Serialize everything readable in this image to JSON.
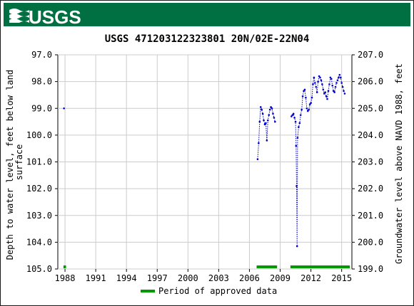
{
  "header": {
    "logo_text": "USGS"
  },
  "chart_data": {
    "type": "scatter",
    "title": "USGS 471203122323801 20N/02E-22N04",
    "ylabel_left": "Depth to water level, feet below land surface",
    "ylabel_right": "Groundwater level above NAVD 1988, feet",
    "ylim_left": [
      105.0,
      97.0
    ],
    "ylim_right": [
      199.0,
      207.0
    ],
    "xlim": [
      1987.3,
      2016.0
    ],
    "x_ticks": [
      "1988",
      "1991",
      "1994",
      "1997",
      "2000",
      "2003",
      "2006",
      "2009",
      "2012",
      "2015"
    ],
    "x_tick_values": [
      1988,
      1991,
      1994,
      1997,
      2000,
      2003,
      2006,
      2009,
      2012,
      2015
    ],
    "y_ticks_left": [
      "97.0",
      "98.0",
      "99.0",
      "100.0",
      "101.0",
      "102.0",
      "103.0",
      "104.0",
      "105.0"
    ],
    "y_tick_values_left": [
      97,
      98,
      99,
      100,
      101,
      102,
      103,
      104,
      105
    ],
    "y_ticks_right": [
      "207.0",
      "206.0",
      "205.0",
      "204.0",
      "203.0",
      "202.0",
      "201.0",
      "200.0",
      "199.0"
    ],
    "grid": true,
    "legend_position": "bottom-center",
    "legend": [
      {
        "label": "Period of approved data",
        "color": "#009900"
      }
    ],
    "series": [
      {
        "color": "#0000cc",
        "points": [
          [
            1987.9,
            99.0
          ]
        ]
      },
      {
        "color": "#0000cc",
        "points": [
          [
            2006.8,
            100.9
          ],
          [
            2006.9,
            100.3
          ],
          [
            2007.0,
            99.5
          ],
          [
            2007.1,
            98.95
          ],
          [
            2007.2,
            99.05
          ],
          [
            2007.3,
            99.2
          ],
          [
            2007.4,
            99.45
          ],
          [
            2007.5,
            99.6
          ],
          [
            2007.6,
            99.55
          ],
          [
            2007.7,
            100.2
          ],
          [
            2007.8,
            99.45
          ],
          [
            2007.9,
            99.25
          ],
          [
            2008.0,
            99.05
          ],
          [
            2008.1,
            98.95
          ],
          [
            2008.2,
            99.0
          ],
          [
            2008.3,
            99.2
          ],
          [
            2008.4,
            99.35
          ],
          [
            2008.5,
            99.5
          ]
        ]
      },
      {
        "color": "#0000cc",
        "points": [
          [
            2010.1,
            99.3
          ],
          [
            2010.2,
            99.25
          ],
          [
            2010.3,
            99.2
          ],
          [
            2010.4,
            99.35
          ],
          [
            2010.5,
            99.5
          ],
          [
            2010.55,
            100.4
          ],
          [
            2010.6,
            101.9
          ],
          [
            2010.65,
            104.15
          ],
          [
            2010.7,
            100.1
          ],
          [
            2010.8,
            99.7
          ],
          [
            2010.9,
            99.55
          ],
          [
            2011.0,
            99.25
          ],
          [
            2011.1,
            99.05
          ],
          [
            2011.2,
            98.55
          ],
          [
            2011.3,
            98.35
          ],
          [
            2011.4,
            98.3
          ],
          [
            2011.5,
            98.6
          ],
          [
            2011.6,
            99.0
          ],
          [
            2011.7,
            99.1
          ],
          [
            2011.8,
            99.05
          ],
          [
            2011.9,
            98.85
          ],
          [
            2012.0,
            98.8
          ],
          [
            2012.1,
            98.6
          ],
          [
            2012.2,
            98.1
          ],
          [
            2012.3,
            97.85
          ],
          [
            2012.4,
            98.05
          ],
          [
            2012.5,
            98.2
          ],
          [
            2012.6,
            98.4
          ],
          [
            2012.7,
            98.0
          ],
          [
            2012.8,
            97.8
          ],
          [
            2012.9,
            97.85
          ],
          [
            2013.0,
            97.95
          ],
          [
            2013.1,
            98.1
          ],
          [
            2013.2,
            98.3
          ],
          [
            2013.3,
            98.45
          ],
          [
            2013.4,
            98.4
          ],
          [
            2013.5,
            98.55
          ],
          [
            2013.6,
            98.65
          ],
          [
            2013.7,
            98.35
          ],
          [
            2013.8,
            98.1
          ],
          [
            2013.9,
            97.85
          ],
          [
            2014.0,
            97.9
          ],
          [
            2014.1,
            98.15
          ],
          [
            2014.2,
            98.35
          ],
          [
            2014.3,
            98.4
          ],
          [
            2014.4,
            98.2
          ],
          [
            2014.5,
            98.05
          ],
          [
            2014.6,
            97.95
          ],
          [
            2014.7,
            97.85
          ],
          [
            2014.8,
            97.75
          ],
          [
            2014.9,
            97.85
          ],
          [
            2015.0,
            98.05
          ],
          [
            2015.1,
            98.2
          ],
          [
            2015.2,
            98.35
          ],
          [
            2015.3,
            98.45
          ]
        ]
      }
    ],
    "approved_periods": [
      [
        1987.85,
        1988.1
      ],
      [
        2006.7,
        2008.7
      ],
      [
        2010.0,
        2015.8
      ]
    ]
  }
}
